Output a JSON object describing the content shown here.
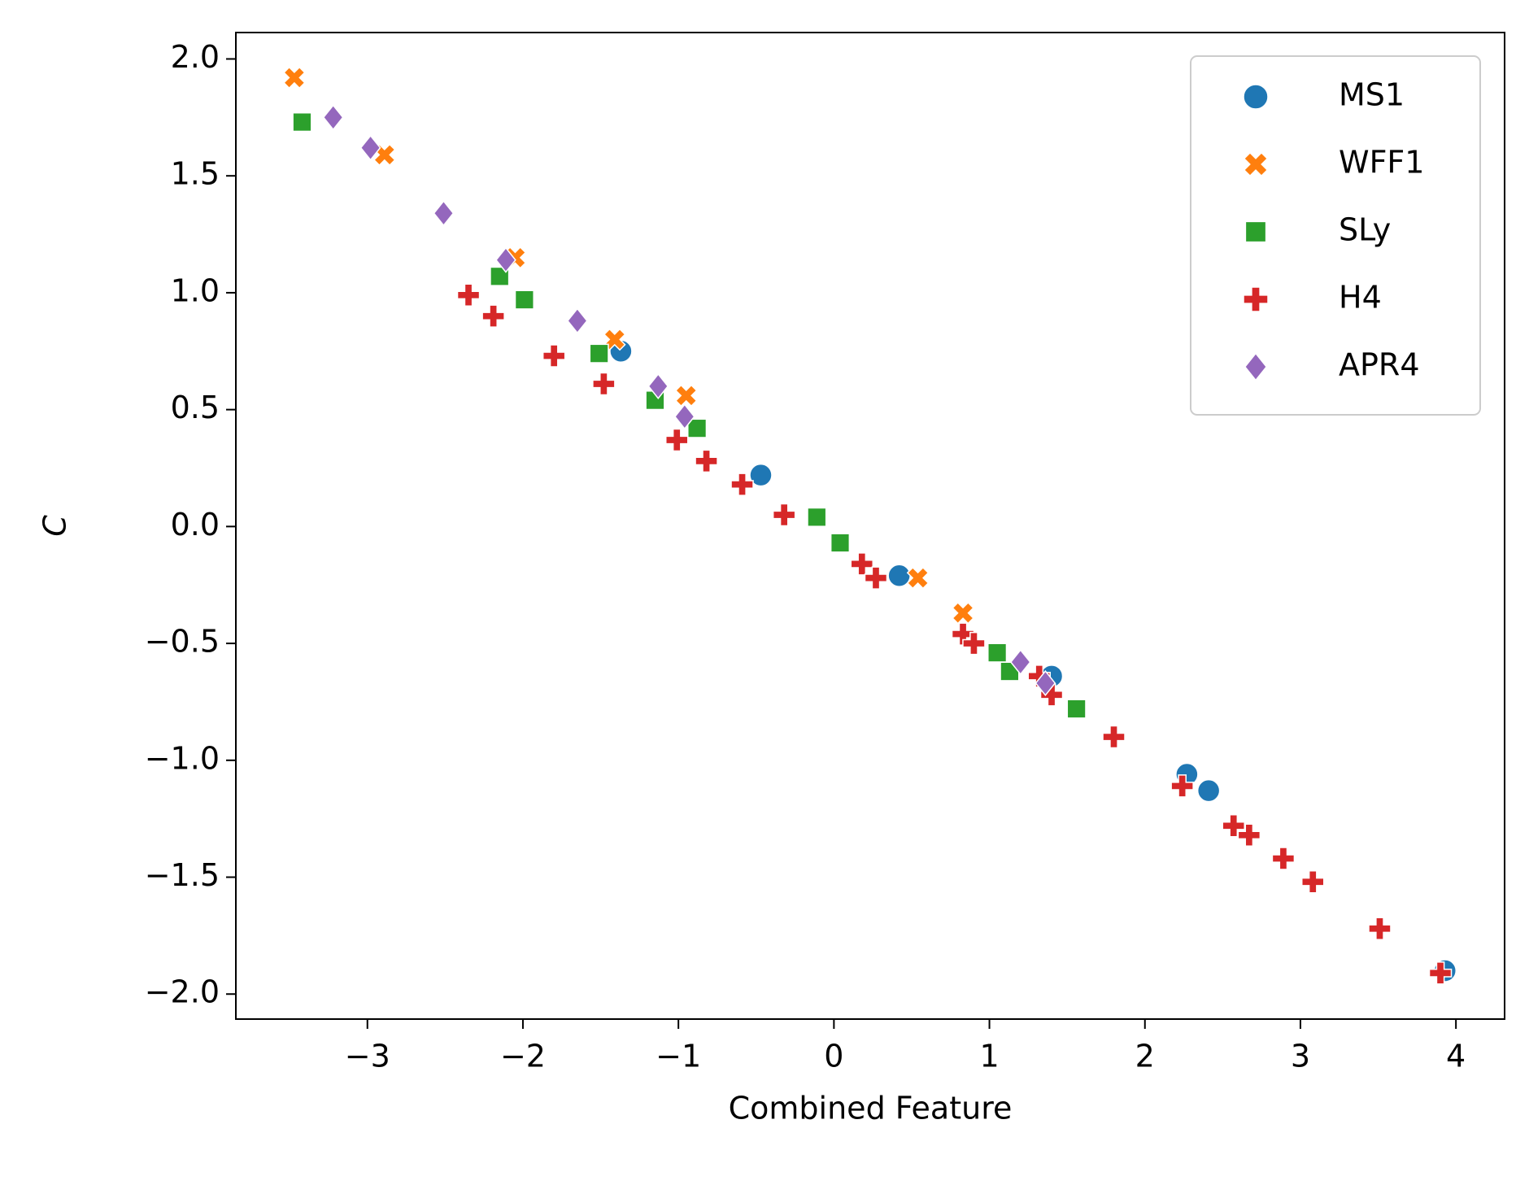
{
  "chart_data": {
    "type": "scatter",
    "x_label": "Combined Feature",
    "y_label": "C",
    "xlim": [
      -3.846,
      4.313
    ],
    "ylim": [
      -2.107,
      2.113
    ],
    "xticks": [
      {
        "value": -3,
        "label": "−3"
      },
      {
        "value": -2,
        "label": "−2"
      },
      {
        "value": -1,
        "label": "−1"
      },
      0,
      1,
      2,
      3,
      4
    ],
    "yticks": [
      {
        "value": -2,
        "label": "−2.0"
      },
      {
        "value": -1.5,
        "label": "−1.5"
      },
      {
        "value": -1,
        "label": "−1.0"
      },
      {
        "value": -0.5,
        "label": "−0.5"
      },
      {
        "value": 0,
        "label": "0.0"
      },
      0.5,
      {
        "value": 1,
        "label": "1.0"
      },
      1.5,
      {
        "value": 2,
        "label": "2.0"
      }
    ],
    "legend": "upper right",
    "series": [
      {
        "name": "MS1",
        "color": "#1f77b4",
        "marker": "circle",
        "x": [
          -1.37,
          -0.47,
          0.42,
          1.4,
          2.27,
          2.41,
          3.93
        ],
        "values": [
          0.75,
          0.22,
          -0.21,
          -0.64,
          -1.06,
          -1.13,
          -1.9
        ]
      },
      {
        "name": "WFF1",
        "color": "#ff7f0e",
        "marker": "x",
        "x": [
          -3.47,
          -2.89,
          -2.05,
          -1.41,
          -0.95,
          0.54,
          0.83
        ],
        "values": [
          1.92,
          1.59,
          1.15,
          0.8,
          0.56,
          -0.22,
          -0.37
        ]
      },
      {
        "name": "SLy",
        "color": "#2ca02c",
        "marker": "square",
        "x": [
          -3.42,
          -2.15,
          -1.99,
          -1.51,
          -1.15,
          -0.88,
          -0.11,
          0.04,
          1.05,
          1.13,
          1.56
        ],
        "values": [
          1.73,
          1.07,
          0.97,
          0.74,
          0.54,
          0.42,
          0.04,
          -0.07,
          -0.54,
          -0.62,
          -0.78
        ]
      },
      {
        "name": "H4",
        "color": "#d62728",
        "marker": "plus",
        "x": [
          -2.35,
          -2.19,
          -1.8,
          -1.48,
          -1.01,
          -0.82,
          -0.59,
          -0.32,
          0.18,
          0.27,
          0.83,
          0.9,
          1.32,
          1.4,
          1.8,
          2.24,
          2.57,
          2.67,
          2.89,
          3.08,
          3.51,
          3.9
        ],
        "values": [
          0.99,
          0.9,
          0.73,
          0.61,
          0.37,
          0.28,
          0.18,
          0.05,
          -0.16,
          -0.22,
          -0.46,
          -0.5,
          -0.64,
          -0.72,
          -0.9,
          -1.11,
          -1.28,
          -1.32,
          -1.42,
          -1.52,
          -1.72,
          -1.91
        ]
      },
      {
        "name": "APR4",
        "color": "#9467bd",
        "marker": "diamond",
        "x": [
          -3.22,
          -2.98,
          -2.51,
          -2.11,
          -1.65,
          -1.13,
          -0.96,
          1.2,
          1.36
        ],
        "values": [
          1.75,
          1.62,
          1.34,
          1.14,
          0.88,
          0.6,
          0.47,
          -0.58,
          -0.67
        ]
      }
    ]
  }
}
